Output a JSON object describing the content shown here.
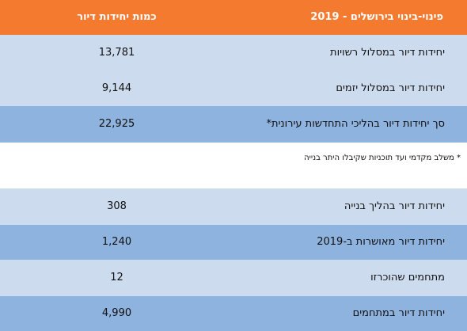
{
  "header": {
    "title": "פינוי-בינוי בירושלים - 2019",
    "amount_label": "כמות יחידות דיור"
  },
  "rows": [
    {
      "label": "יחידות דיור במסלול רשויות",
      "value": "13,781"
    },
    {
      "label": "יחידות דיור במסלול יזמים",
      "value": "9,144"
    },
    {
      "label": "סך יחידות דיור בהליכי התחדשות עירונית*",
      "value": "22,925"
    }
  ],
  "footnote": "* משלב מקדמי ועד תוכניות שקיבלו היתר בנייה",
  "rows2": [
    {
      "label": "יחידות דיור בהליך בנייה",
      "value": "308"
    },
    {
      "label": "יחידות דיור מאושרות ב-2019",
      "value": "1,240"
    },
    {
      "label": "מתחמים שהוכרזו",
      "value": "12"
    },
    {
      "label": "יחידות דיור במתחמים",
      "value": "4,990"
    }
  ]
}
